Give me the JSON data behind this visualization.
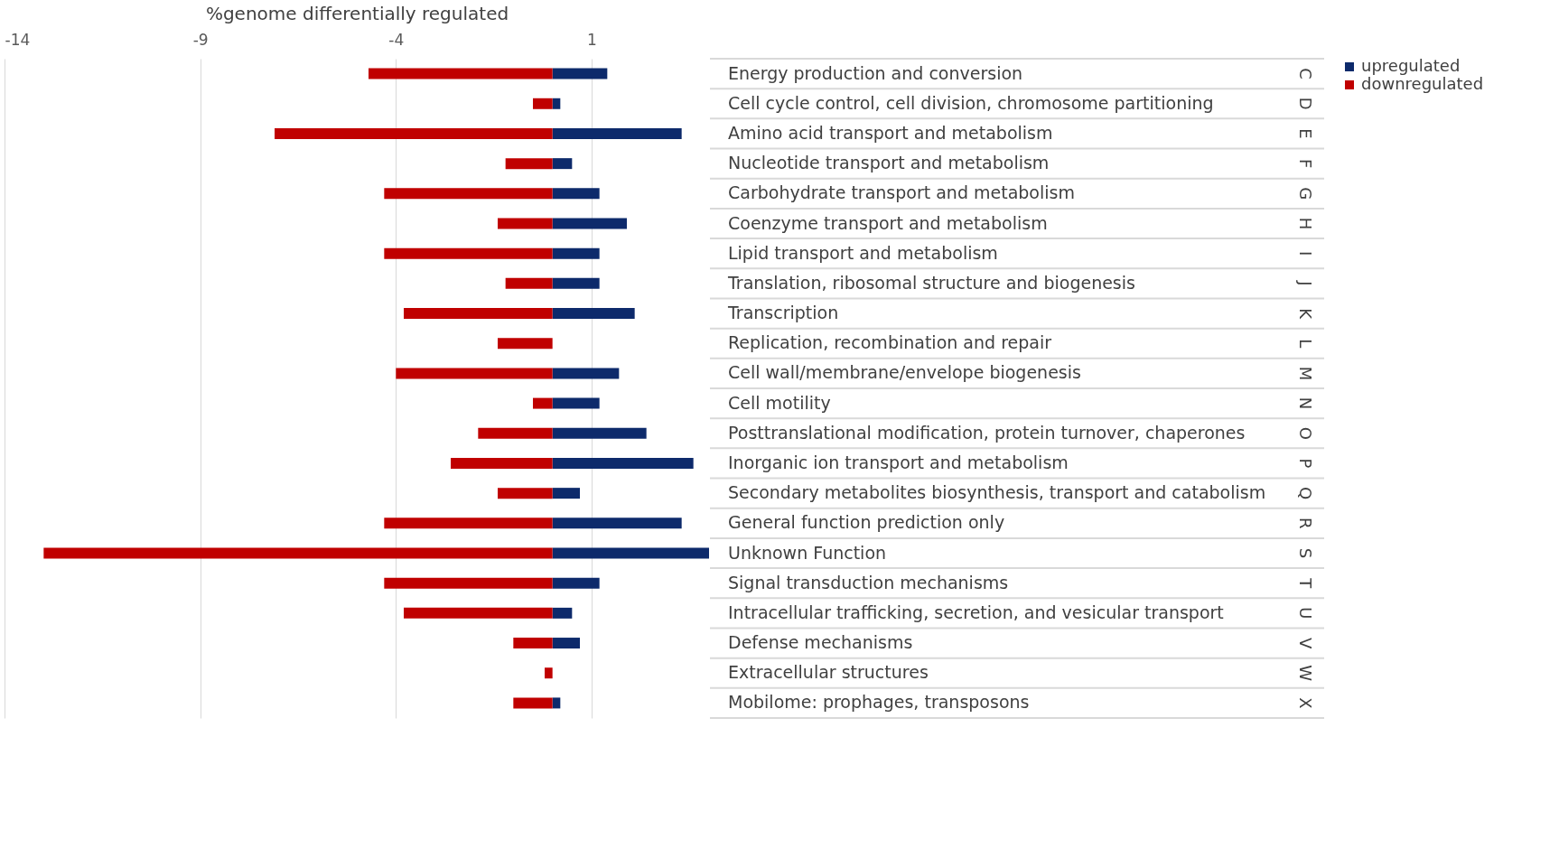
{
  "chart_data": {
    "type": "bar",
    "orientation": "horizontal",
    "xlabel": "%genome differentially regulated",
    "categories": [
      "Energy production and conversion",
      "Cell cycle control, cell division, chromosome partitioning",
      "Amino acid transport and metabolism",
      "Nucleotide transport and metabolism",
      "Carbohydrate transport and metabolism",
      "Coenzyme transport and metabolism",
      "Lipid transport and metabolism",
      "Translation, ribosomal structure and biogenesis",
      "Transcription",
      "Replication, recombination and repair",
      "Cell wall/membrane/envelope biogenesis",
      "Cell motility",
      "Posttranslational modification, protein turnover, chaperones",
      "Inorganic ion transport and metabolism",
      "Secondary metabolites biosynthesis, transport and catabolism",
      "General function prediction only",
      "Unknown Function",
      "Signal transduction mechanisms",
      "Intracellular trafficking, secretion, and vesicular transport",
      "Defense mechanisms",
      "Extracellular structures",
      "Mobilome: prophages, transposons"
    ],
    "y2_categories": [
      "C",
      "D",
      "E",
      "F",
      "G",
      "H",
      "I",
      "J",
      "K",
      "L",
      "M",
      "N",
      "O",
      "P",
      "Q",
      "R",
      "S",
      "T",
      "U",
      "V",
      "W",
      "X"
    ],
    "series": [
      {
        "name": "upregulated",
        "color": "#0d2a6b",
        "values": [
          1.4,
          0.2,
          3.3,
          0.5,
          1.2,
          1.9,
          1.2,
          1.2,
          2.1,
          null,
          1.7,
          1.2,
          2.4,
          3.6,
          0.7,
          3.3,
          4.0,
          1.2,
          0.5,
          0.7,
          null,
          0.2
        ]
      },
      {
        "name": "downregulated",
        "color": "#c00000",
        "values": [
          -4.7,
          -0.5,
          -7.1,
          -1.2,
          -4.3,
          -1.4,
          -4.3,
          -1.2,
          -3.8,
          -1.4,
          -4.0,
          -0.5,
          -1.9,
          -2.6,
          -1.4,
          -4.3,
          -13.0,
          -4.3,
          -3.8,
          -1.0,
          -0.2,
          -1.0
        ]
      }
    ],
    "stacked": true,
    "xlim": [
      -14,
      4
    ],
    "xticks": [
      -14,
      -9,
      -4,
      1
    ],
    "grid": "x",
    "legend": "right"
  }
}
